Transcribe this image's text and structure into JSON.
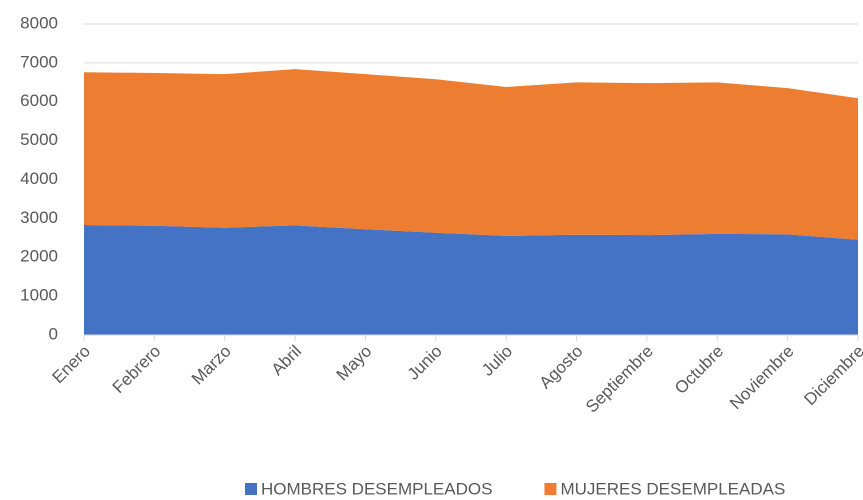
{
  "chart_data": {
    "type": "stacked_area",
    "categories": [
      "Enero",
      "Febrero",
      "Marzo",
      "Abril",
      "Mayo",
      "Junio",
      "Julio",
      "Agosto",
      "Septiembre",
      "Octubre",
      "Noviembre",
      "Diciembre"
    ],
    "series": [
      {
        "name": "HOMBRES DESEMPLEADOS",
        "color": "#4472c4",
        "values": [
          2830,
          2810,
          2760,
          2820,
          2720,
          2630,
          2550,
          2580,
          2570,
          2600,
          2590,
          2450
        ]
      },
      {
        "name": "MUJERES DESEMPLEADAS",
        "color": "#ed7d31",
        "values": [
          3930,
          3930,
          3950,
          4020,
          3990,
          3950,
          3830,
          3920,
          3910,
          3900,
          3760,
          3640
        ]
      }
    ],
    "ylim": [
      0,
      8000
    ],
    "yticks": [
      0,
      1000,
      2000,
      3000,
      4000,
      5000,
      6000,
      7000,
      8000
    ],
    "grid": true,
    "legend": "bottom"
  }
}
